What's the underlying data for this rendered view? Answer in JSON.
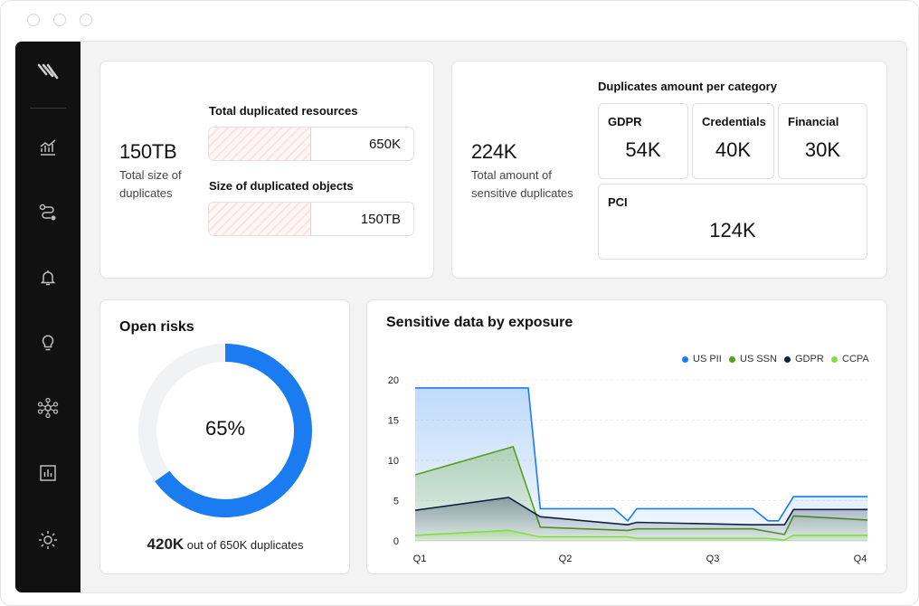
{
  "summary": {
    "total_size_value": "150TB",
    "total_size_caption_1": "Total size of",
    "total_size_caption_2": "duplicates",
    "dup_resources_label": "Total duplicated resources",
    "dup_resources_value": "650K",
    "dup_resources_fill": 0.5,
    "dup_objects_label": "Size of duplicated objects",
    "dup_objects_value": "150TB",
    "dup_objects_fill": 0.5
  },
  "sensitive": {
    "total_value": "224K",
    "caption_1": "Total amount of",
    "caption_2": "sensitive duplicates",
    "categories_title": "Duplicates amount per category",
    "categories": [
      {
        "name": "GDPR",
        "value": "54K"
      },
      {
        "name": "Credentials",
        "value": "40K"
      },
      {
        "name": "Financial",
        "value": "30K"
      },
      {
        "name": "PCI",
        "value": "124K"
      }
    ]
  },
  "risks": {
    "title": "Open risks",
    "percent_label": "65%",
    "percent": 65,
    "count_value": "420K",
    "count_text": "out of 650K duplicates",
    "ring_color": "#1a7cf0",
    "track_color": "#f1f2f4"
  },
  "exposure": {
    "title": "Sensitive data by exposure"
  },
  "chart_data": {
    "type": "area",
    "title": "Sensitive data by exposure",
    "x_ticks": [
      "Q1",
      "Q2",
      "Q3",
      "Q4"
    ],
    "y_ticks": [
      0,
      5,
      10,
      15,
      20
    ],
    "ylim": [
      0,
      20
    ],
    "xlim": [
      0,
      30
    ],
    "grid": true,
    "legend_position": "top-right",
    "series": [
      {
        "name": "US PII",
        "color": "#1a7cf0",
        "x": [
          0,
          7.5,
          8.3,
          13.2,
          14.1,
          14.7,
          22.4,
          23.4,
          24.1,
          25.1,
          30
        ],
        "y": [
          19,
          19,
          4,
          4,
          2.5,
          4,
          4,
          2.5,
          2.5,
          5.5,
          5.5
        ]
      },
      {
        "name": "US SSN",
        "color": "#5a9e1a",
        "x": [
          0,
          6.5,
          8.3,
          14.1,
          14.7,
          22.4,
          24.5,
          25.1,
          30
        ],
        "y": [
          8.2,
          11.7,
          1.7,
          1.3,
          1.5,
          1.5,
          0.8,
          3.1,
          2.6
        ]
      },
      {
        "name": "GDPR",
        "color": "#0f2340",
        "x": [
          0,
          6.2,
          8.3,
          14.1,
          14.7,
          22.4,
          24.5,
          25.1,
          30
        ],
        "y": [
          3.8,
          5.4,
          3,
          2,
          2.3,
          2,
          2,
          3.9,
          3.9
        ]
      },
      {
        "name": "CCPA",
        "color": "#7fe03a",
        "x": [
          0,
          6.2,
          8.3,
          14.1,
          14.7,
          22.4,
          23.4,
          24.5,
          25.1,
          30
        ],
        "y": [
          0.7,
          1.3,
          0.5,
          0.5,
          0.3,
          0.3,
          0.3,
          0.1,
          0.7,
          0.7
        ]
      }
    ]
  }
}
